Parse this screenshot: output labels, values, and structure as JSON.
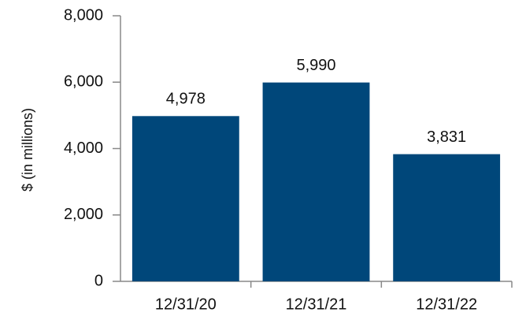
{
  "chart_data": {
    "type": "bar",
    "y_label": "$ (in millions)",
    "categories": [
      "12/31/20",
      "12/31/21",
      "12/31/22"
    ],
    "values": [
      4978,
      5990,
      3831
    ],
    "value_labels": [
      "4,978",
      "5,990",
      "3,831"
    ],
    "color": "#00477a",
    "ylim": [
      0,
      8000
    ],
    "yticks": [
      0,
      {
        "value": 2000,
        "label": "2,000"
      },
      {
        "value": 4000,
        "label": "4,000"
      },
      {
        "value": 6000,
        "label": "6,000"
      },
      {
        "value": 8000,
        "label": "8,000"
      }
    ],
    "grid": false
  }
}
